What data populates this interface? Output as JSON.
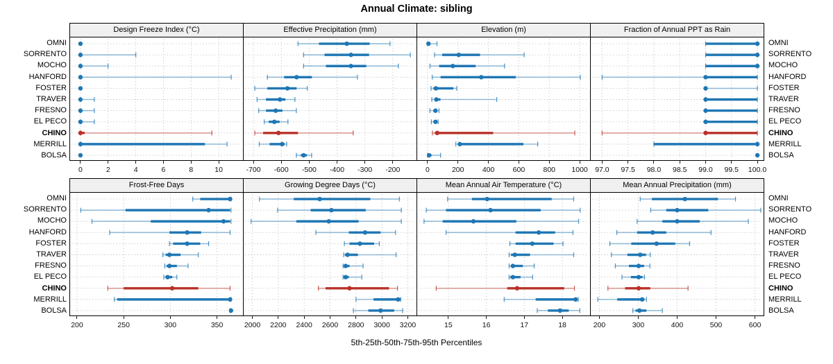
{
  "title": "Annual Climate: sibling",
  "caption": "5th-25th-50th-75th-95th Percentiles",
  "percentile_labels": [
    "5th",
    "25th",
    "50th",
    "75th",
    "95th"
  ],
  "stations": [
    "OMNI",
    "SORRENTO",
    "MOCHO",
    "HANFORD",
    "FOSTER",
    "TRAVER",
    "FRESNO",
    "EL PECO",
    "CHINO",
    "MERRILL",
    "BOLSA"
  ],
  "highlight_station": "CHINO",
  "colors": {
    "series_blue": "#1f77b4",
    "series_red": "#b93128",
    "header_bg": "#f0f0f0",
    "grid": "#c8c8c8",
    "panel_border": "#000000"
  },
  "chart_data": [
    {
      "type": "scatter",
      "row": 1,
      "title": "Design Freeze Index (°C)",
      "xlim": [
        -0.75,
        11.75
      ],
      "xticks": [
        0,
        2,
        4,
        6,
        8,
        10
      ],
      "xtick_labels": [
        "0",
        "2",
        "4",
        "6",
        "8",
        "10"
      ],
      "categories": [
        "OMNI",
        "SORRENTO",
        "MOCHO",
        "HANFORD",
        "FOSTER",
        "TRAVER",
        "FRESNO",
        "EL PECO",
        "CHINO",
        "MERRILL",
        "BOLSA"
      ],
      "percentiles": [
        [
          0,
          0,
          0,
          0,
          0
        ],
        [
          0,
          0,
          0,
          0,
          4
        ],
        [
          0,
          0,
          0,
          0,
          2
        ],
        [
          0,
          0,
          0,
          0,
          10.9
        ],
        [
          0,
          0,
          0,
          0,
          0
        ],
        [
          0,
          0,
          0,
          0,
          1
        ],
        [
          0,
          0,
          0,
          0,
          1
        ],
        [
          0,
          0,
          0,
          0,
          1
        ],
        [
          0,
          0,
          0,
          0.3,
          9.5
        ],
        [
          0,
          0,
          0,
          9,
          10.6
        ],
        [
          0,
          0,
          0,
          0,
          0
        ]
      ]
    },
    {
      "type": "scatter",
      "row": 1,
      "title": "Effective Precipitation (mm)",
      "xlim": [
        -735,
        -115
      ],
      "xticks": [
        -700,
        -600,
        -500,
        -400,
        -300,
        -200
      ],
      "xtick_labels": [
        "-700",
        "-600",
        "-500",
        "-400",
        "-300",
        "-200"
      ],
      "categories": [
        "OMNI",
        "SORRENTO",
        "MOCHO",
        "HANFORD",
        "FOSTER",
        "TRAVER",
        "FRESNO",
        "EL PECO",
        "CHINO",
        "MERRILL",
        "BOLSA"
      ],
      "percentiles": [
        [
          -540,
          -465,
          -365,
          -283,
          -210
        ],
        [
          -520,
          -445,
          -350,
          -285,
          -137
        ],
        [
          -520,
          -440,
          -350,
          -295,
          -180
        ],
        [
          -650,
          -590,
          -545,
          -490,
          -327
        ],
        [
          -695,
          -650,
          -578,
          -545,
          -507
        ],
        [
          -687,
          -655,
          -605,
          -585,
          -551
        ],
        [
          -681,
          -655,
          -620,
          -596,
          -546
        ],
        [
          -661,
          -645,
          -625,
          -606,
          -576
        ],
        [
          -695,
          -665,
          -610,
          -540,
          -342
        ],
        [
          -679,
          -642,
          -597,
          -588,
          -581
        ],
        [
          -546,
          -530,
          -520,
          -508,
          -491
        ]
      ]
    },
    {
      "type": "scatter",
      "row": 1,
      "title": "Elevation (m)",
      "xlim": [
        -68,
        1068
      ],
      "xticks": [
        0,
        200,
        400,
        600,
        800,
        1000
      ],
      "xtick_labels": [
        "0",
        "200",
        "400",
        "600",
        "800",
        "1000"
      ],
      "categories": [
        "OMNI",
        "SORRENTO",
        "MOCHO",
        "HANFORD",
        "FOSTER",
        "TRAVER",
        "FRESNO",
        "EL PECO",
        "CHINO",
        "MERRILL",
        "BOLSA"
      ],
      "percentiles": [
        [
          0,
          0,
          6,
          18,
          62
        ],
        [
          46,
          96,
          205,
          345,
          635
        ],
        [
          16,
          76,
          166,
          316,
          506
        ],
        [
          31,
          86,
          353,
          580,
          1004
        ],
        [
          23,
          38,
          55,
          170,
          192
        ],
        [
          28,
          45,
          58,
          85,
          455
        ],
        [
          15,
          38,
          52,
          62,
          75
        ],
        [
          25,
          42,
          52,
          60,
          70
        ],
        [
          32,
          48,
          64,
          431,
          968
        ],
        [
          186,
          205,
          212,
          630,
          724
        ],
        [
          0,
          2,
          10,
          26,
          86
        ]
      ]
    },
    {
      "type": "scatter",
      "row": 1,
      "title": "Fraction of Annual PPT as Rain",
      "xlim": [
        96.78,
        100.12
      ],
      "xticks": [
        97.0,
        97.5,
        98.0,
        98.5,
        99.0,
        99.5,
        100.0
      ],
      "xtick_labels": [
        "97.0",
        "97.5",
        "98.0",
        "98.5",
        "99.0",
        "99.5",
        "100.0"
      ],
      "categories": [
        "OMNI",
        "SORRENTO",
        "MOCHO",
        "HANFORD",
        "FOSTER",
        "TRAVER",
        "FRESNO",
        "EL PECO",
        "CHINO",
        "MERRILL",
        "BOLSA"
      ],
      "percentiles": [
        [
          99,
          99,
          100,
          100,
          100
        ],
        [
          99,
          99,
          100,
          100,
          100
        ],
        [
          99,
          99,
          100,
          100,
          100
        ],
        [
          97,
          99,
          99,
          100,
          100
        ],
        [
          99,
          99,
          99,
          99,
          100
        ],
        [
          99,
          99,
          99,
          100,
          100
        ],
        [
          99,
          99,
          99,
          100,
          100
        ],
        [
          99,
          99,
          99,
          100,
          100
        ],
        [
          97,
          99,
          99,
          100,
          100
        ],
        [
          98,
          98,
          100,
          100,
          100
        ],
        [
          100,
          100,
          100,
          100,
          100
        ]
      ]
    },
    {
      "type": "scatter",
      "row": 2,
      "title": "Frost-Free Days",
      "xlim": [
        192.6,
        377.8
      ],
      "xticks": [
        200,
        250,
        300,
        350
      ],
      "xtick_labels": [
        "200",
        "250",
        "300",
        "350"
      ],
      "categories": [
        "OMNI",
        "SORRENTO",
        "MOCHO",
        "HANFORD",
        "FOSTER",
        "TRAVER",
        "FRESNO",
        "EL PECO",
        "CHINO",
        "MERRILL",
        "BOLSA"
      ],
      "percentiles": [
        [
          324,
          332,
          364,
          365,
          365
        ],
        [
          204,
          252,
          341,
          364,
          365
        ],
        [
          216,
          279,
          357,
          364,
          365
        ],
        [
          235,
          299,
          318,
          333,
          364
        ],
        [
          299,
          303,
          318,
          332,
          341
        ],
        [
          292,
          295,
          299,
          311,
          330
        ],
        [
          294,
          296,
          299,
          307,
          319
        ],
        [
          293,
          295,
          297,
          302,
          307
        ],
        [
          233,
          250,
          302,
          330,
          364
        ],
        [
          240,
          243,
          364,
          365,
          365
        ],
        [
          364,
          365,
          365,
          365,
          365
        ]
      ]
    },
    {
      "type": "scatter",
      "row": 2,
      "title": "Growing Degree Days (°C)",
      "xlim": [
        1933,
        3267
      ],
      "xticks": [
        2000,
        2200,
        2400,
        2600,
        2800,
        3000,
        3200
      ],
      "xtick_labels": [
        "2000",
        "2200",
        "2400",
        "2600",
        "2800",
        "3000",
        "3200"
      ],
      "categories": [
        "OMNI",
        "SORRENTO",
        "MOCHO",
        "HANFORD",
        "FOSTER",
        "TRAVER",
        "FRESNO",
        "EL PECO",
        "CHINO",
        "MERRILL",
        "BOLSA"
      ],
      "percentiles": [
        [
          2055,
          2320,
          2520,
          2910,
          3135
        ],
        [
          2195,
          2450,
          2610,
          2875,
          3150
        ],
        [
          1990,
          2340,
          2590,
          2820,
          3150
        ],
        [
          2490,
          2745,
          2870,
          2990,
          3105
        ],
        [
          2710,
          2750,
          2830,
          2940,
          2980
        ],
        [
          2705,
          2715,
          2735,
          2815,
          3110
        ],
        [
          2700,
          2705,
          2720,
          2750,
          2855
        ],
        [
          2700,
          2705,
          2720,
          2745,
          2845
        ],
        [
          2510,
          2565,
          2750,
          3055,
          3120
        ],
        [
          2800,
          2935,
          3125,
          3145,
          3145
        ],
        [
          2780,
          2895,
          2990,
          3095,
          3160
        ]
      ]
    },
    {
      "type": "scatter",
      "row": 2,
      "title": "Mean Annual Air Temperature (°C)",
      "xlim": [
        14.18,
        18.73
      ],
      "xticks": [
        15,
        16,
        17,
        18
      ],
      "xtick_labels": [
        "15",
        "16",
        "17",
        "18"
      ],
      "categories": [
        "OMNI",
        "SORRENTO",
        "MOCHO",
        "HANFORD",
        "FOSTER",
        "TRAVER",
        "FRESNO",
        "EL PECO",
        "CHINO",
        "MERRILL",
        "BOLSA"
      ],
      "percentiles": [
        [
          14.98,
          15.62,
          16.02,
          17.72,
          18.3
        ],
        [
          14.42,
          14.94,
          16.11,
          17.43,
          18.47
        ],
        [
          14.36,
          14.85,
          15.66,
          16.79,
          18.43
        ],
        [
          14.94,
          16.77,
          17.38,
          17.81,
          18.28
        ],
        [
          16.62,
          16.77,
          17.21,
          17.77,
          18.02
        ],
        [
          16.6,
          16.65,
          16.75,
          17.15,
          18.3
        ],
        [
          16.6,
          16.64,
          16.7,
          16.96,
          17.26
        ],
        [
          16.6,
          16.63,
          16.7,
          16.9,
          17.22
        ],
        [
          14.68,
          16.55,
          16.81,
          18.05,
          18.32
        ],
        [
          16.47,
          17.3,
          18.35,
          18.4,
          18.42
        ],
        [
          17.34,
          17.62,
          17.94,
          18.17,
          18.46
        ]
      ]
    },
    {
      "type": "scatter",
      "row": 2,
      "title": "Mean Annual Precipitation (mm)",
      "xlim": [
        177.8,
        622.2
      ],
      "xticks": [
        200,
        300,
        400,
        500,
        600
      ],
      "xtick_labels": [
        "200",
        "300",
        "400",
        "500",
        "600"
      ],
      "categories": [
        "OMNI",
        "SORRENTO",
        "MOCHO",
        "HANFORD",
        "FOSTER",
        "TRAVER",
        "FRESNO",
        "EL PECO",
        "CHINO",
        "MERRILL",
        "BOLSA"
      ],
      "percentiles": [
        [
          305,
          335,
          420,
          505,
          550
        ],
        [
          332,
          372,
          400,
          480,
          615
        ],
        [
          297,
          362,
          400,
          458,
          583
        ],
        [
          245,
          297,
          337,
          372,
          487
        ],
        [
          227,
          282,
          347,
          395,
          432
        ],
        [
          231,
          272,
          305,
          320,
          331
        ],
        [
          241,
          276,
          301,
          315,
          330
        ],
        [
          258,
          281,
          301,
          311,
          316
        ],
        [
          222,
          266,
          301,
          331,
          428
        ],
        [
          196,
          246,
          310,
          316,
          321
        ],
        [
          286,
          293,
          303,
          321,
          362
        ]
      ]
    }
  ]
}
